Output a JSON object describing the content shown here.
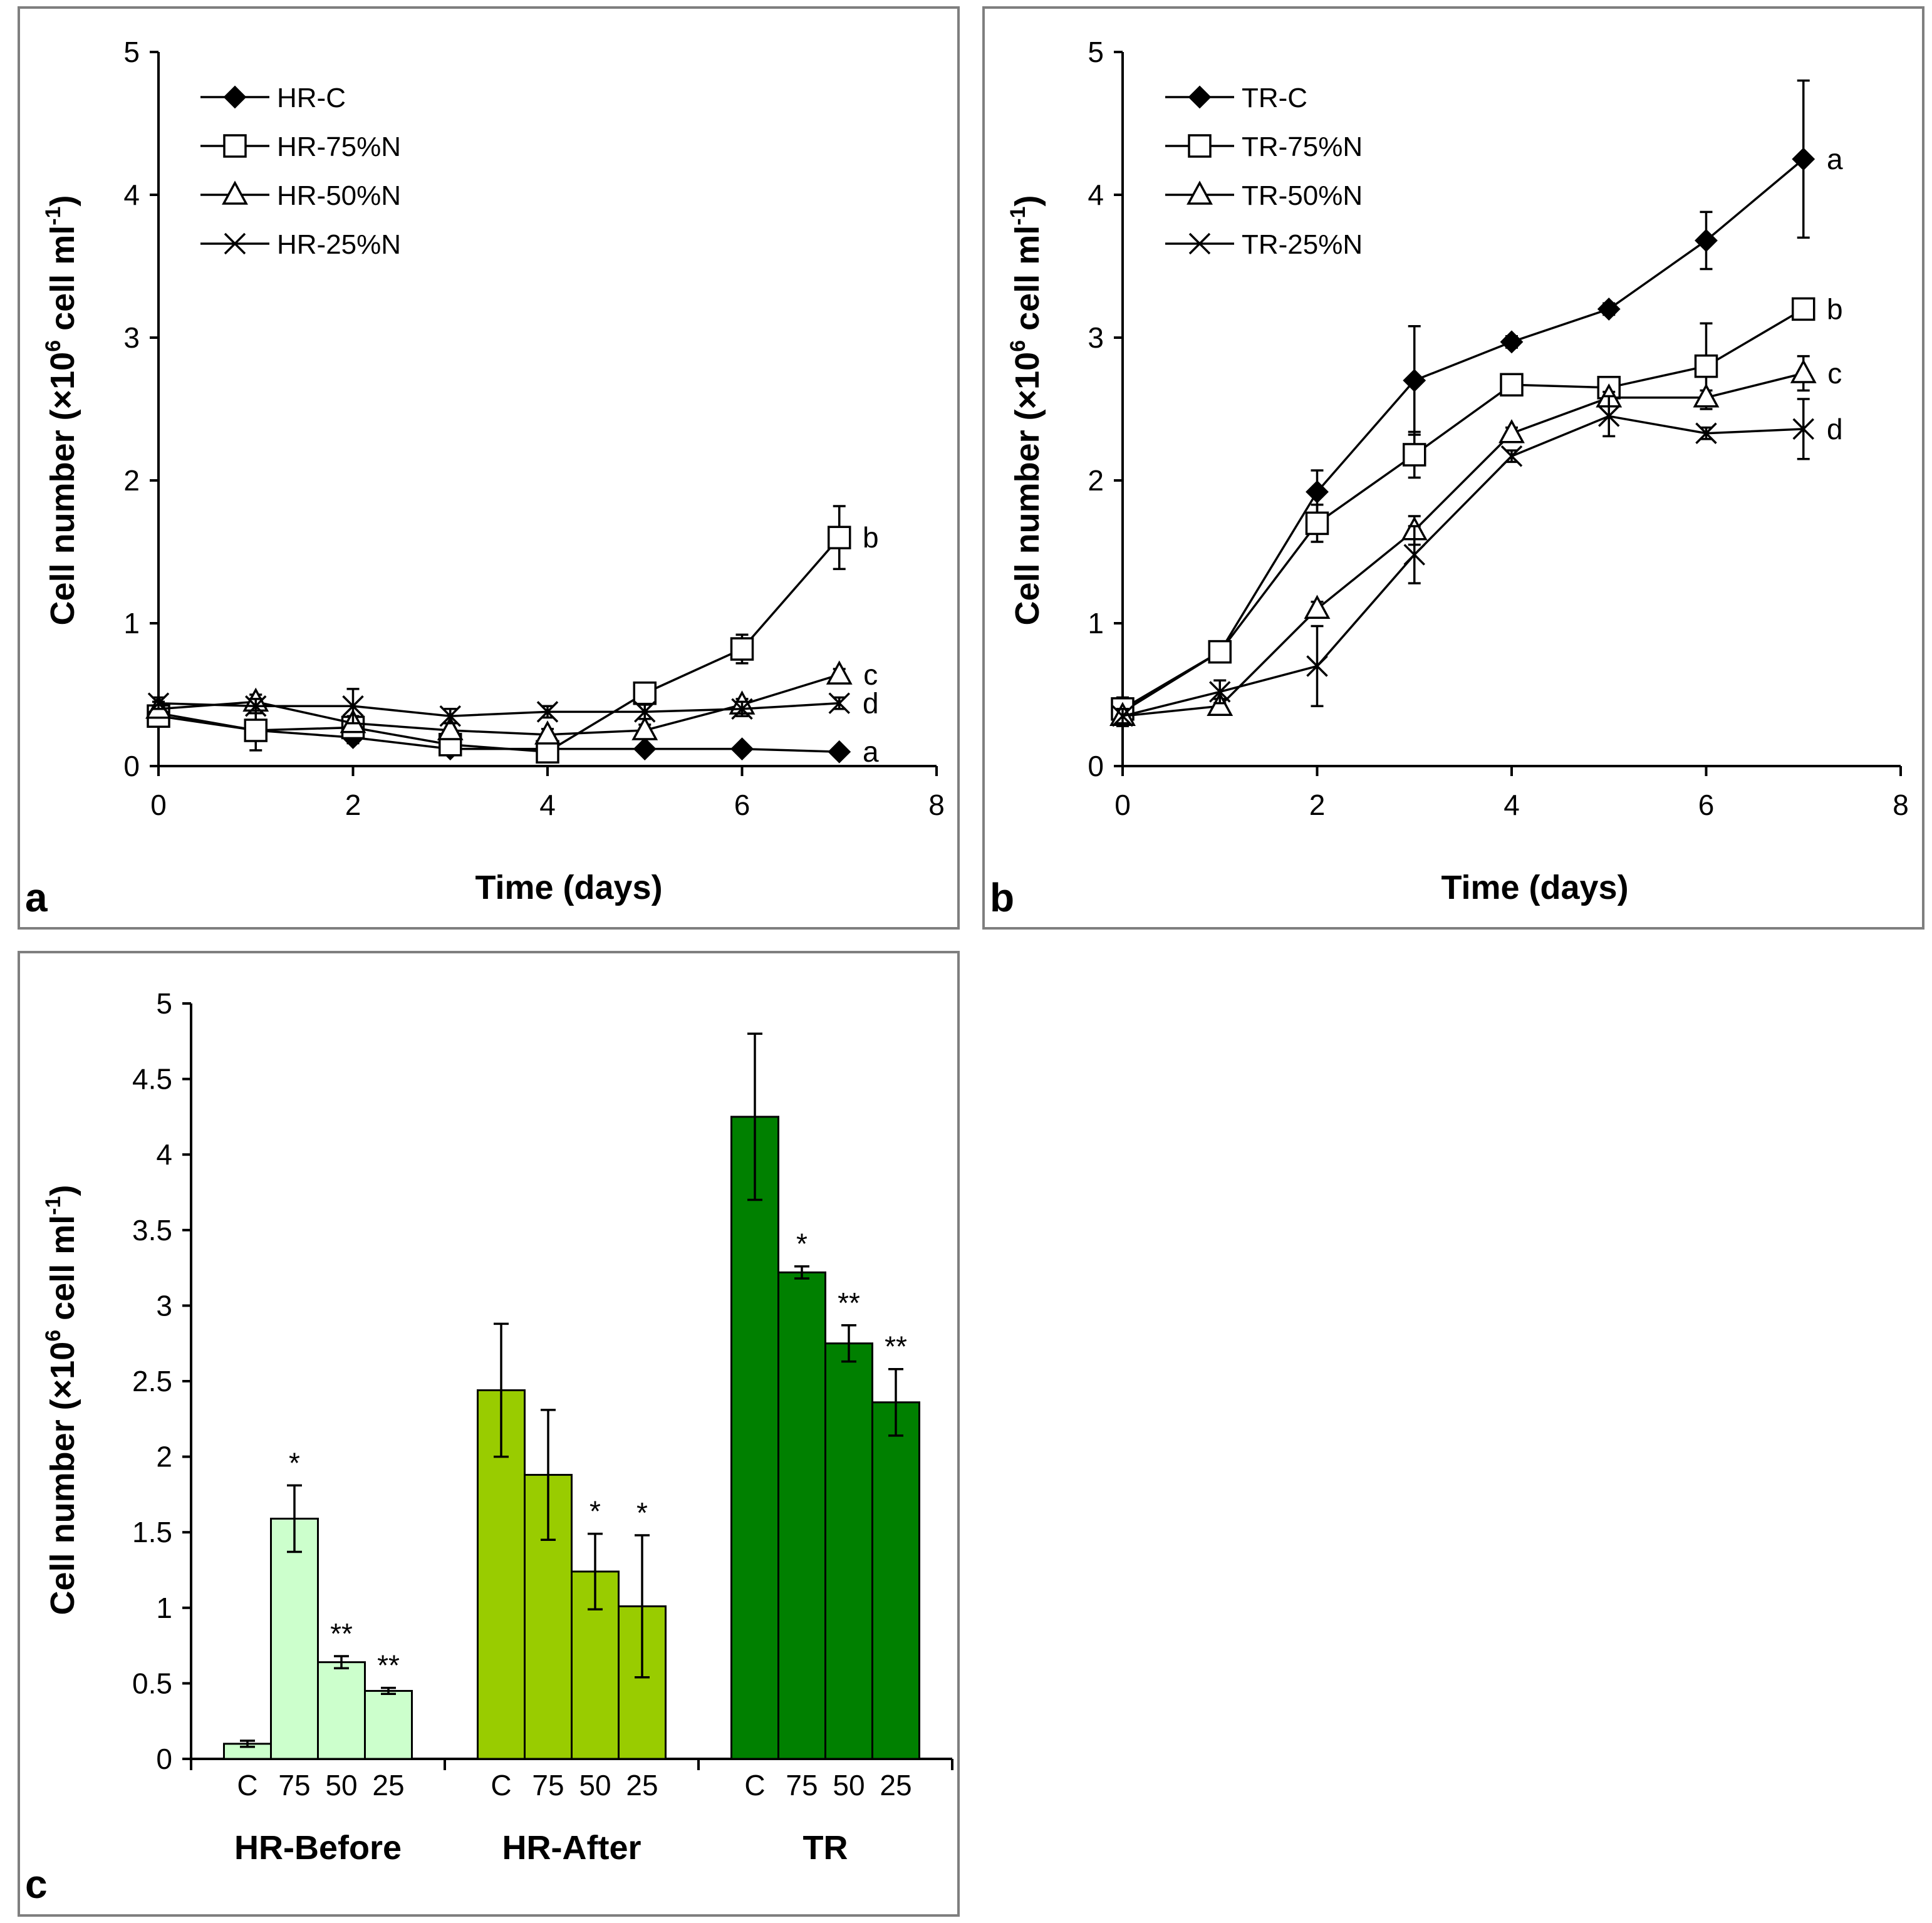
{
  "chart_data": [
    {
      "panel": "a",
      "type": "line",
      "xlabel": "Time (days)",
      "ylabel_main": "Cell number (×10",
      "ylabel_sup_exp": "6",
      "ylabel_rest": " cell ml",
      "ylabel_sup_inv": "-1",
      "ylabel_close": ")",
      "xlim": [
        0,
        8
      ],
      "ylim": [
        0,
        5
      ],
      "xticks": [
        "0",
        "2",
        "4",
        "6",
        "8"
      ],
      "yticks": [
        "0",
        "1",
        "2",
        "3",
        "4",
        "5"
      ],
      "legend_position": "top-left",
      "series": [
        {
          "name": "HR-C",
          "marker": "diamond",
          "x": [
            0,
            1,
            2,
            3,
            4,
            5,
            6,
            7
          ],
          "values": [
            0.37,
            0.25,
            0.2,
            0.12,
            0.12,
            0.12,
            0.12,
            0.1
          ],
          "err": [
            0.05,
            0.04,
            0.04,
            0.03,
            0.03,
            0.02,
            0.02,
            0.02
          ],
          "letter": "a"
        },
        {
          "name": "HR-75%N",
          "marker": "square",
          "x": [
            0,
            1,
            2,
            3,
            4,
            5,
            6,
            7
          ],
          "values": [
            0.35,
            0.25,
            0.27,
            0.15,
            0.1,
            0.51,
            0.82,
            1.6
          ],
          "err": [
            0.05,
            0.14,
            0.06,
            0.05,
            0.05,
            0.04,
            0.1,
            0.22
          ],
          "letter": "b"
        },
        {
          "name": "HR-50%N",
          "marker": "triangle",
          "x": [
            0,
            1,
            2,
            3,
            4,
            5,
            6,
            7
          ],
          "values": [
            0.4,
            0.45,
            0.3,
            0.25,
            0.22,
            0.25,
            0.43,
            0.64
          ],
          "err": [
            0.05,
            0.05,
            0.05,
            0.05,
            0.04,
            0.04,
            0.04,
            0.04
          ],
          "letter": "c"
        },
        {
          "name": "HR-25%N",
          "marker": "x",
          "x": [
            0,
            1,
            2,
            3,
            4,
            5,
            6,
            7
          ],
          "values": [
            0.44,
            0.42,
            0.42,
            0.35,
            0.38,
            0.38,
            0.4,
            0.44
          ],
          "err": [
            0.04,
            0.05,
            0.12,
            0.05,
            0.04,
            0.05,
            0.05,
            0.04
          ],
          "letter": "d"
        }
      ]
    },
    {
      "panel": "b",
      "type": "line",
      "xlabel": "Time (days)",
      "ylabel_main": "Cell number (×10",
      "ylabel_sup_exp": "6",
      "ylabel_rest": " cell ml",
      "ylabel_sup_inv": "-1",
      "ylabel_close": ")",
      "xlim": [
        0,
        8
      ],
      "ylim": [
        0,
        5
      ],
      "xticks": [
        "0",
        "2",
        "4",
        "6",
        "8"
      ],
      "yticks": [
        "0",
        "1",
        "2",
        "3",
        "4",
        "5"
      ],
      "legend_position": "top-left",
      "series": [
        {
          "name": "TR-C",
          "marker": "diamond",
          "x": [
            0,
            1,
            2,
            3,
            4,
            5,
            6,
            7
          ],
          "values": [
            0.38,
            0.8,
            1.92,
            2.7,
            2.97,
            3.2,
            3.68,
            4.25
          ],
          "err": [
            0.1,
            0.05,
            0.15,
            0.38,
            0.04,
            0.04,
            0.2,
            0.55
          ],
          "letter": "a"
        },
        {
          "name": "TR-75%N",
          "marker": "square",
          "x": [
            0,
            1,
            2,
            3,
            4,
            5,
            6,
            7
          ],
          "values": [
            0.4,
            0.8,
            1.7,
            2.18,
            2.67,
            2.65,
            2.8,
            3.2
          ],
          "err": [
            0.06,
            0.05,
            0.13,
            0.16,
            0.04,
            0.04,
            0.3,
            0.04
          ],
          "letter": "b"
        },
        {
          "name": "TR-50%N",
          "marker": "triangle",
          "x": [
            0,
            1,
            2,
            3,
            4,
            5,
            6,
            7
          ],
          "values": [
            0.35,
            0.42,
            1.1,
            1.65,
            2.33,
            2.58,
            2.58,
            2.75
          ],
          "err": [
            0.05,
            0.05,
            0.05,
            0.1,
            0.04,
            0.04,
            0.05,
            0.12
          ],
          "letter": "c"
        },
        {
          "name": "TR-25%N",
          "marker": "x",
          "x": [
            0,
            1,
            2,
            3,
            4,
            5,
            6,
            7
          ],
          "values": [
            0.35,
            0.52,
            0.7,
            1.48,
            2.17,
            2.45,
            2.33,
            2.36
          ],
          "err": [
            0.05,
            0.08,
            0.28,
            0.2,
            0.04,
            0.14,
            0.04,
            0.21
          ],
          "letter": "d"
        }
      ]
    },
    {
      "panel": "c",
      "type": "bar",
      "xlabel": "",
      "ylabel_main": "Cell number (×10",
      "ylabel_sup_exp": "6",
      "ylabel_rest": " cell ml",
      "ylabel_sup_inv": "-1",
      "ylabel_close": ")",
      "ylim": [
        0,
        5
      ],
      "yticks": [
        "0",
        "0.5",
        "1",
        "1.5",
        "2",
        "2.5",
        "3",
        "3.5",
        "4",
        "4.5",
        "5"
      ],
      "bar_labels": [
        "C",
        "75",
        "50",
        "25"
      ],
      "groups": [
        {
          "name": "HR-Before",
          "color": "#ccffcc",
          "values": [
            0.1,
            1.59,
            0.64,
            0.45
          ],
          "err": [
            0.02,
            0.22,
            0.04,
            0.02
          ],
          "sig": [
            "",
            "*",
            "**",
            "**"
          ]
        },
        {
          "name": "HR-After",
          "color": "#99cc00",
          "values": [
            2.44,
            1.88,
            1.24,
            1.01
          ],
          "err": [
            0.44,
            0.43,
            0.25,
            0.47
          ],
          "sig": [
            "",
            "",
            "*",
            "*"
          ]
        },
        {
          "name": "TR",
          "color": "#008000",
          "values": [
            4.25,
            3.22,
            2.75,
            2.36
          ],
          "err": [
            0.55,
            0.04,
            0.12,
            0.22
          ],
          "sig": [
            "",
            "*",
            "**",
            "**"
          ]
        }
      ]
    }
  ]
}
